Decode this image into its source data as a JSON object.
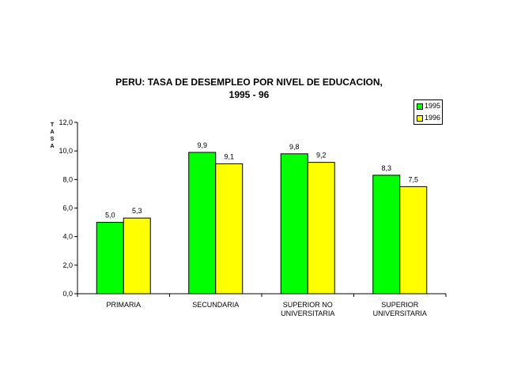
{
  "chart_data": {
    "type": "bar",
    "title": "PERU: TASA DE DESEMPLEO POR NIVEL DE EDUCACION,",
    "subtitle": "1995 - 96",
    "ylabel": "TASA",
    "xlabel": "",
    "ylim": [
      0,
      12
    ],
    "yticks": [
      "0,0",
      "2,0",
      "4,0",
      "6,0",
      "8,0",
      "10,0",
      "12,0"
    ],
    "categories": [
      [
        "PRIMARIA"
      ],
      [
        "SECUNDARIA"
      ],
      [
        "SUPERIOR NO",
        "UNIVERSITARIA"
      ],
      [
        "SUPERIOR",
        "UNIVERSITARIA"
      ]
    ],
    "series": [
      {
        "name": "1995",
        "color": "#00ff00",
        "values": [
          5.0,
          9.9,
          9.8,
          8.3
        ],
        "labels": [
          "5,0",
          "9,9",
          "9,8",
          "8,3"
        ]
      },
      {
        "name": "1996",
        "color": "#ffff00",
        "values": [
          5.3,
          9.1,
          9.2,
          7.5
        ],
        "labels": [
          "5,3",
          "9,1",
          "9,2",
          "7,5"
        ]
      }
    ],
    "legend": "top-right",
    "grid": false
  }
}
